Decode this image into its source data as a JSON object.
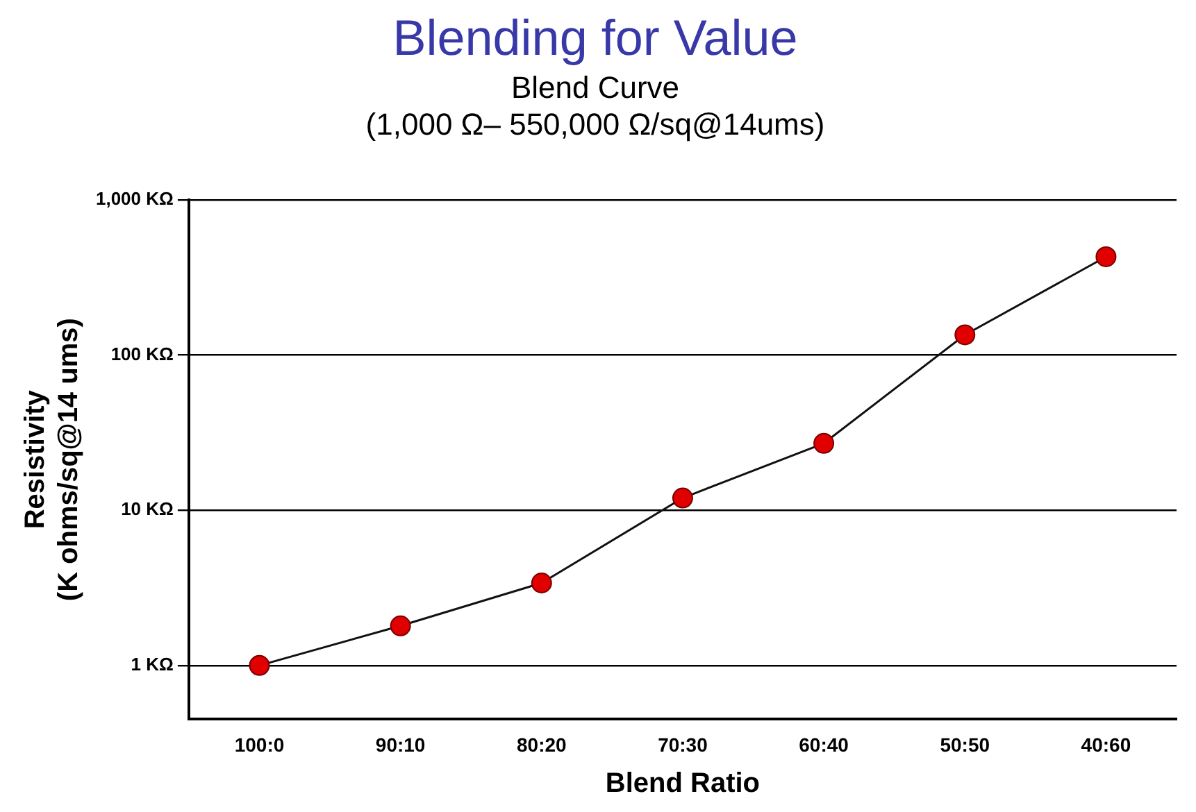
{
  "chart_data": {
    "type": "line",
    "title": "Blending for Value",
    "subtitle": "Blend Curve\n(1,000 Ω– 550,000 Ω/sq@14ums)",
    "xlabel": "Blend Ratio",
    "ylabel": "Resistivity\n(K ohms/sq@14 ums)",
    "categories": [
      "100:0",
      "90:10",
      "80:20",
      "70:30",
      "60:40",
      "50:50",
      "40:60"
    ],
    "series": [
      {
        "color": "#e00000",
        "values": [
          1,
          1.8,
          3.4,
          12,
          27,
          135,
          430
        ]
      }
    ],
    "log": "y",
    "ylim": [
      0.45,
      1000
    ],
    "yticks": [
      {
        "value": 1,
        "label": "1 KΩ"
      },
      {
        "value": 10,
        "label": "10 KΩ"
      },
      {
        "value": 100,
        "label": "100 KΩ"
      },
      {
        "value": 1000,
        "label": "1,000 KΩ"
      }
    ],
    "grid": "y",
    "legend": false,
    "marker": "circle",
    "line_style": "solid"
  }
}
